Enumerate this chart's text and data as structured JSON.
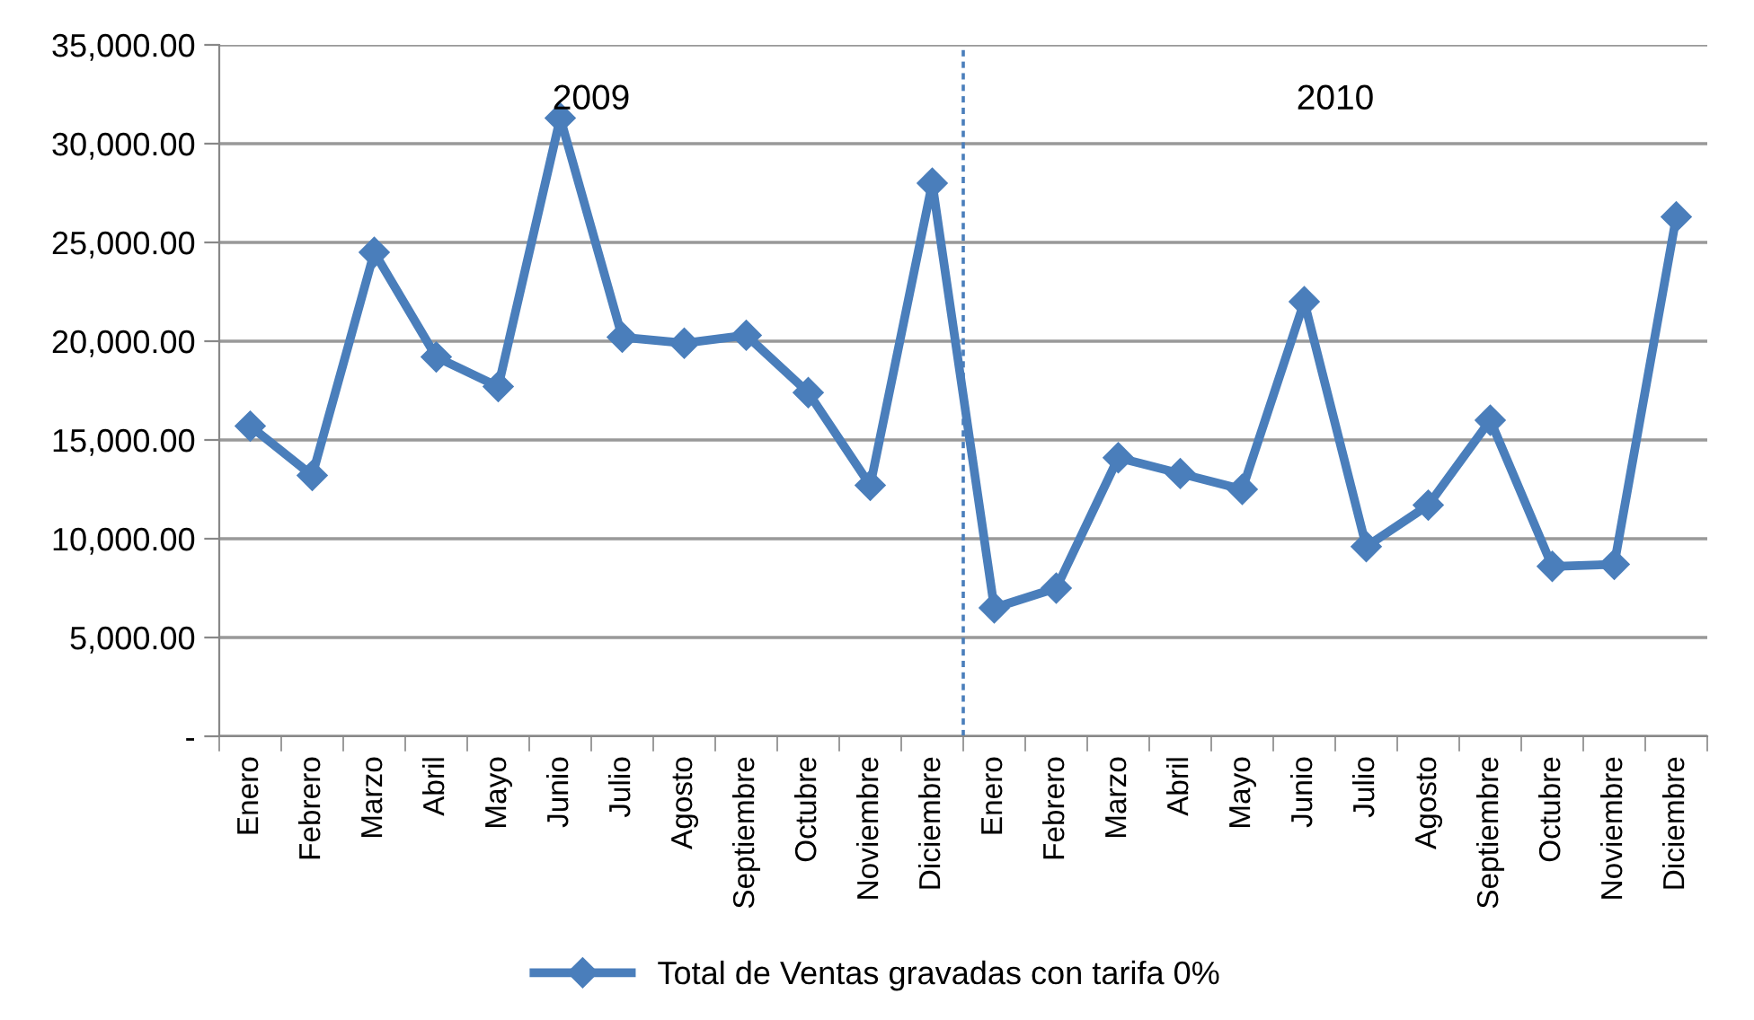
{
  "chart_data": {
    "type": "line",
    "categories": [
      "Enero",
      "Febrero",
      "Marzo",
      "Abril",
      "Mayo",
      "Junio",
      "Julio",
      "Agosto",
      "Septiembre",
      "Octubre",
      "Noviembre",
      "Diciembre",
      "Enero",
      "Febrero",
      "Marzo",
      "Abril",
      "Mayo",
      "Junio",
      "Julio",
      "Agosto",
      "Septiembre",
      "Octubre",
      "Noviembre",
      "Diciembre"
    ],
    "series": [
      {
        "name": "Total de Ventas gravadas con tarifa 0%",
        "color": "#4a7ebb",
        "values": [
          15700,
          13200,
          24500,
          19200,
          17700,
          31300,
          20200,
          19900,
          20300,
          17400,
          12700,
          28000,
          6500,
          7500,
          14100,
          13300,
          12500,
          22000,
          9600,
          11700,
          16000,
          8600,
          8700,
          26300
        ]
      }
    ],
    "ylim": [
      0,
      35000
    ],
    "yticks": [
      {
        "value": 0,
        "label": "-"
      },
      {
        "value": 5000,
        "label": "5,000.00"
      },
      {
        "value": 10000,
        "label": "10,000.00"
      },
      {
        "value": 15000,
        "label": "15,000.00"
      },
      {
        "value": 20000,
        "label": "20,000.00"
      },
      {
        "value": 25000,
        "label": "25,000.00"
      },
      {
        "value": 30000,
        "label": "30,000.00"
      },
      {
        "value": 35000,
        "label": "35,000.00"
      }
    ],
    "annotations": [
      "2009",
      "2010"
    ],
    "grid": "y",
    "legend": "bottom",
    "marker": "diamond",
    "line_style": "solid"
  }
}
